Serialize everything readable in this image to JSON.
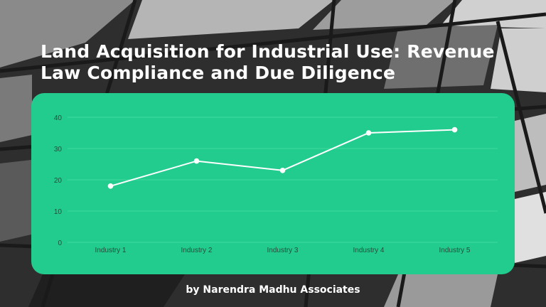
{
  "title": "Land Acquisition for Industrial Use: Revenue Law Compliance and Due Diligence",
  "byline": "by Narendra Madhu Associates",
  "colors": {
    "card": "#22cc8f",
    "line": "#ffffff",
    "grid": "#3fd79e",
    "tick_text": "#1f4f3a"
  },
  "chart_data": {
    "type": "line",
    "categories": [
      "Industry 1",
      "Industry 2",
      "Industry 3",
      "Industry 4",
      "Industry 5"
    ],
    "series": [
      {
        "values": [
          18,
          26,
          23,
          35,
          36
        ]
      }
    ],
    "yticks": [
      0,
      10,
      20,
      30,
      40
    ],
    "ylim": [
      0,
      40
    ],
    "xlabel": "",
    "ylabel": "",
    "grid": true,
    "legend": "none"
  }
}
